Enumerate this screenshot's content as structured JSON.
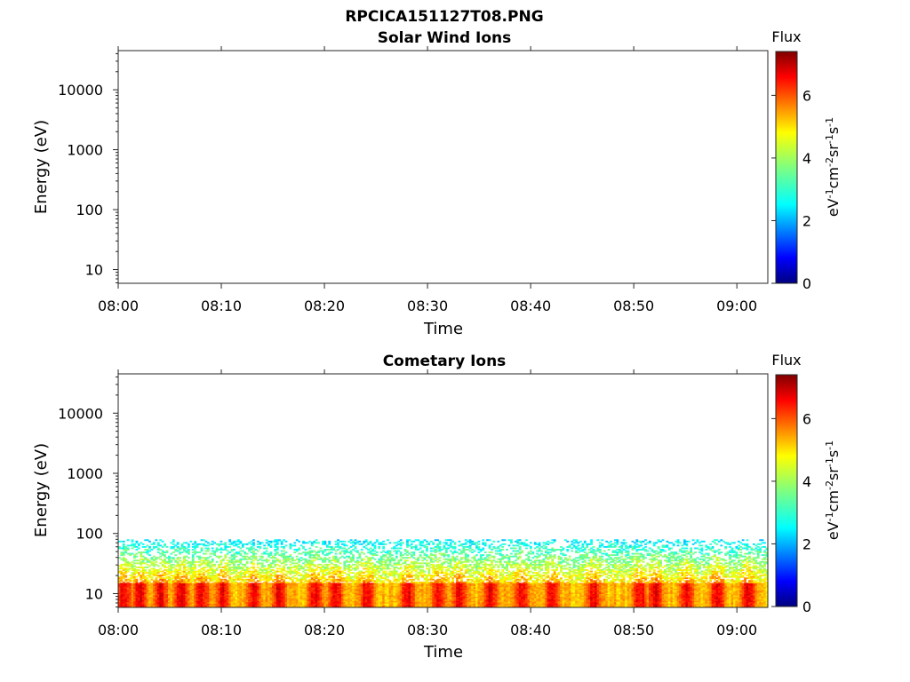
{
  "figure_title": "RPCICA151127T08.PNG",
  "chart_data": [
    {
      "type": "heatmap",
      "title": "Solar Wind Ions",
      "xlabel": "Time",
      "ylabel": "Energy (eV)",
      "x_ticks": [
        "08:00",
        "08:10",
        "08:20",
        "08:30",
        "08:40",
        "08:50",
        "09:00"
      ],
      "x_range_minutes": [
        0,
        63
      ],
      "y_scale": "log",
      "y_ticks": [
        "10",
        "100",
        "1000",
        "10000"
      ],
      "y_range": [
        5.9,
        45000
      ],
      "colorbar": {
        "label": "Flux",
        "units": "eV-1cm-2sr-1s-1",
        "ticks": [
          "0",
          "2",
          "4",
          "6"
        ],
        "range": [
          0,
          7.4
        ],
        "colormap": "jet"
      },
      "data_present": false
    },
    {
      "type": "heatmap",
      "title": "Cometary Ions",
      "xlabel": "Time",
      "ylabel": "Energy (eV)",
      "x_ticks": [
        "08:00",
        "08:10",
        "08:20",
        "08:30",
        "08:40",
        "08:50",
        "09:00"
      ],
      "x_range_minutes": [
        0,
        63
      ],
      "y_scale": "log",
      "y_ticks": [
        "10",
        "100",
        "1000",
        "10000"
      ],
      "y_range": [
        5.9,
        45000
      ],
      "colorbar": {
        "label": "Flux",
        "units": "eV-1cm-2sr-1s-1",
        "ticks": [
          "0",
          "2",
          "4",
          "6"
        ],
        "range": [
          0,
          7.4
        ],
        "colormap": "jet"
      },
      "data_present": true,
      "energy_upper_eV": 80,
      "peak_flux_band_eV": [
        6,
        15
      ],
      "strong_events_minutes": [
        0.5,
        2,
        4,
        6,
        8,
        10,
        13,
        15.5,
        19,
        21,
        24,
        28,
        31,
        33,
        36,
        39,
        42,
        46,
        50.5,
        52,
        55,
        58,
        61
      ]
    }
  ]
}
